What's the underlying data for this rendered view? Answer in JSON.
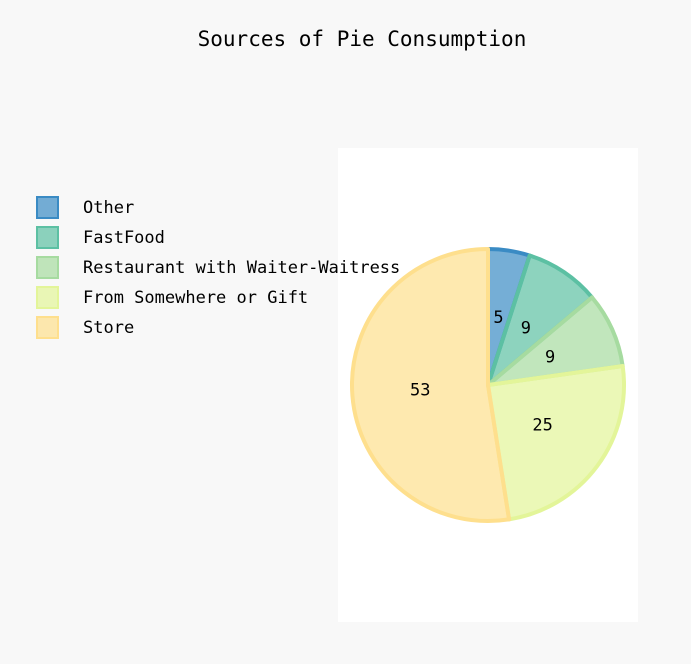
{
  "chart_data": {
    "type": "pie",
    "title": "Sources of Pie Consumption",
    "series": [
      {
        "name": "Other",
        "color": "#3a8bc4",
        "values": [
          5
        ]
      },
      {
        "name": "FastFood",
        "color": "#5cc0a3",
        "values": [
          9
        ]
      },
      {
        "name": "Restaurant with Waiter-Waitress",
        "color": "#a6dba0",
        "values": [
          9
        ]
      },
      {
        "name": "From Somewhere or Gift",
        "color": "#e3f599",
        "values": [
          25
        ]
      },
      {
        "name": "Store",
        "color": "#fedf8d",
        "values": [
          53
        ]
      }
    ],
    "legend": "left"
  }
}
